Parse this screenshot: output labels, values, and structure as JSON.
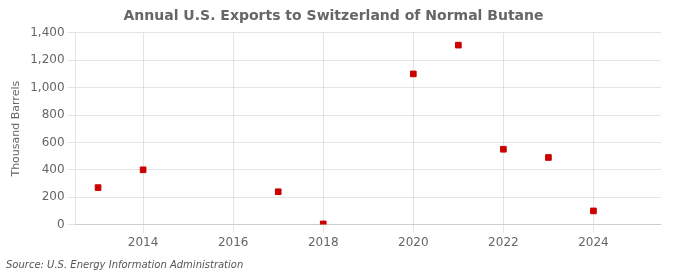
{
  "chart_data": {
    "type": "scatter",
    "title": "Annual U.S. Exports to Switzerland of Normal Butane",
    "ylabel": "Thousand Barrels",
    "source": "Source: U.S. Energy Information Administration",
    "x": [
      2013,
      2014,
      2017,
      2018,
      2020,
      2021,
      2022,
      2023,
      2024
    ],
    "values": [
      270,
      400,
      240,
      5,
      1100,
      1310,
      550,
      490,
      100
    ],
    "color": "#cc0000",
    "marker": "square",
    "xlim": [
      2012.5,
      2025.5
    ],
    "xticks": [
      2014,
      2016,
      2018,
      2020,
      2022,
      2024
    ],
    "ylim": [
      0,
      1400
    ],
    "yticks": [
      0,
      200,
      400,
      600,
      800,
      {
        "value": 1000,
        "label": "1,000"
      },
      {
        "value": 1200,
        "label": "1,200"
      },
      {
        "value": 1400,
        "label": "1,400"
      }
    ],
    "grid": true
  }
}
